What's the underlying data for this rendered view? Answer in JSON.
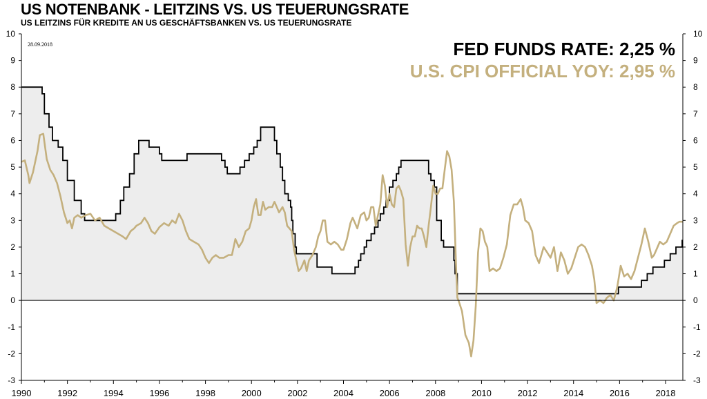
{
  "header": {
    "title": "US NOTENBANK - LEITZINS VS. US TEUERUNGSRATE",
    "subtitle": "US LEITZINS FÜR KREDITE AN US GESCHÄFTSBANKEN  VS.  US TEUERUNGSRATE"
  },
  "chart_data": {
    "type": "line",
    "title": "US NOTENBANK - LEITZINS VS. US TEUERUNGSRATE",
    "subtitle": "US LEITZINS FÜR KREDITE AN US GESCHÄFTSBANKEN  VS.  US TEUERUNGSRATE",
    "date_stamp": "28.09.2018",
    "xlim": [
      1990,
      2018.75
    ],
    "ylim": [
      -3,
      10
    ],
    "y_ticks": [
      "10",
      "9",
      "8",
      "7",
      "6",
      "5",
      "4",
      "3",
      "2",
      "1",
      "0",
      "-1",
      "-2",
      "-3"
    ],
    "x_ticks": [
      "1990",
      "1992",
      "1994",
      "1996",
      "1998",
      "2000",
      "2002",
      "2004",
      "2006",
      "2008",
      "2010",
      "2012",
      "2014",
      "2016",
      "2018"
    ],
    "legend": [
      {
        "label": "FED FUNDS RATE: 2,25 %",
        "color": "#000000"
      },
      {
        "label": "U.S. CPI OFFICIAL YOY: 2,95 %",
        "color": "#c4b07e"
      }
    ],
    "series": [
      {
        "name": "Fed Funds Rate",
        "style": "step-filled",
        "color": "#000000",
        "fill": "#ededed",
        "points": [
          [
            1990,
            8.0
          ],
          [
            1990.8,
            8.0
          ],
          [
            1990.9,
            7.75
          ],
          [
            1991.0,
            7.0
          ],
          [
            1991.2,
            6.5
          ],
          [
            1991.35,
            6.0
          ],
          [
            1991.6,
            5.75
          ],
          [
            1991.8,
            5.25
          ],
          [
            1992.0,
            4.5
          ],
          [
            1992.3,
            3.75
          ],
          [
            1992.6,
            3.25
          ],
          [
            1992.75,
            3.0
          ],
          [
            1994.1,
            3.25
          ],
          [
            1994.3,
            3.75
          ],
          [
            1994.45,
            4.25
          ],
          [
            1994.7,
            4.75
          ],
          [
            1994.9,
            5.5
          ],
          [
            1995.1,
            6.0
          ],
          [
            1995.55,
            5.75
          ],
          [
            1996.0,
            5.5
          ],
          [
            1996.1,
            5.25
          ],
          [
            1997.2,
            5.5
          ],
          [
            1998.7,
            5.25
          ],
          [
            1998.85,
            5.0
          ],
          [
            1998.95,
            4.75
          ],
          [
            1999.5,
            5.0
          ],
          [
            1999.7,
            5.25
          ],
          [
            1999.9,
            5.5
          ],
          [
            2000.1,
            5.75
          ],
          [
            2000.25,
            6.0
          ],
          [
            2000.4,
            6.5
          ],
          [
            2001.0,
            6.0
          ],
          [
            2001.1,
            5.5
          ],
          [
            2001.25,
            5.0
          ],
          [
            2001.35,
            4.5
          ],
          [
            2001.45,
            4.0
          ],
          [
            2001.6,
            3.75
          ],
          [
            2001.7,
            3.5
          ],
          [
            2001.75,
            3.0
          ],
          [
            2001.8,
            2.5
          ],
          [
            2001.9,
            2.0
          ],
          [
            2001.95,
            1.75
          ],
          [
            2002.85,
            1.25
          ],
          [
            2003.5,
            1.0
          ],
          [
            2004.5,
            1.25
          ],
          [
            2004.65,
            1.5
          ],
          [
            2004.75,
            1.75
          ],
          [
            2004.9,
            2.0
          ],
          [
            2005.0,
            2.25
          ],
          [
            2005.2,
            2.5
          ],
          [
            2005.35,
            2.75
          ],
          [
            2005.5,
            3.0
          ],
          [
            2005.6,
            3.25
          ],
          [
            2005.75,
            3.5
          ],
          [
            2005.85,
            3.75
          ],
          [
            2006.0,
            4.25
          ],
          [
            2006.15,
            4.5
          ],
          [
            2006.3,
            4.75
          ],
          [
            2006.4,
            5.0
          ],
          [
            2006.5,
            5.25
          ],
          [
            2007.7,
            4.75
          ],
          [
            2007.8,
            4.5
          ],
          [
            2007.95,
            4.25
          ],
          [
            2008.05,
            3.0
          ],
          [
            2008.25,
            2.25
          ],
          [
            2008.35,
            2.0
          ],
          [
            2008.8,
            1.5
          ],
          [
            2008.85,
            1.0
          ],
          [
            2008.95,
            0.25
          ],
          [
            2015.95,
            0.5
          ],
          [
            2016.95,
            0.75
          ],
          [
            2017.2,
            1.0
          ],
          [
            2017.45,
            1.25
          ],
          [
            2017.95,
            1.5
          ],
          [
            2018.2,
            1.75
          ],
          [
            2018.45,
            2.0
          ],
          [
            2018.72,
            2.25
          ],
          [
            2018.75,
            2.25
          ]
        ]
      },
      {
        "name": "U.S. CPI Official YoY",
        "style": "line",
        "color": "#c4b07e",
        "points": [
          [
            1990,
            5.2
          ],
          [
            1990.15,
            5.25
          ],
          [
            1990.3,
            4.7
          ],
          [
            1990.35,
            4.4
          ],
          [
            1990.5,
            4.8
          ],
          [
            1990.7,
            5.6
          ],
          [
            1990.8,
            6.2
          ],
          [
            1990.95,
            6.25
          ],
          [
            1991.1,
            5.3
          ],
          [
            1991.25,
            4.9
          ],
          [
            1991.4,
            4.7
          ],
          [
            1991.55,
            4.4
          ],
          [
            1991.7,
            3.9
          ],
          [
            1991.85,
            3.3
          ],
          [
            1992.0,
            2.9
          ],
          [
            1992.1,
            3.0
          ],
          [
            1992.2,
            2.7
          ],
          [
            1992.3,
            3.1
          ],
          [
            1992.45,
            3.2
          ],
          [
            1992.6,
            3.1
          ],
          [
            1992.8,
            3.2
          ],
          [
            1993.0,
            3.25
          ],
          [
            1993.2,
            3.0
          ],
          [
            1993.4,
            3.1
          ],
          [
            1993.6,
            2.8
          ],
          [
            1993.8,
            2.7
          ],
          [
            1994.0,
            2.6
          ],
          [
            1994.2,
            2.5
          ],
          [
            1994.4,
            2.4
          ],
          [
            1994.55,
            2.3
          ],
          [
            1994.75,
            2.6
          ],
          [
            1994.9,
            2.7
          ],
          [
            1995.0,
            2.8
          ],
          [
            1995.2,
            2.9
          ],
          [
            1995.35,
            3.1
          ],
          [
            1995.5,
            2.9
          ],
          [
            1995.65,
            2.6
          ],
          [
            1995.8,
            2.5
          ],
          [
            1996.0,
            2.75
          ],
          [
            1996.2,
            2.9
          ],
          [
            1996.4,
            2.8
          ],
          [
            1996.55,
            3.0
          ],
          [
            1996.7,
            2.9
          ],
          [
            1996.85,
            3.25
          ],
          [
            1997.0,
            3.0
          ],
          [
            1997.15,
            2.6
          ],
          [
            1997.3,
            2.3
          ],
          [
            1997.5,
            2.2
          ],
          [
            1997.7,
            2.1
          ],
          [
            1997.85,
            1.9
          ],
          [
            1998.0,
            1.6
          ],
          [
            1998.15,
            1.4
          ],
          [
            1998.3,
            1.6
          ],
          [
            1998.45,
            1.7
          ],
          [
            1998.6,
            1.6
          ],
          [
            1998.8,
            1.6
          ],
          [
            1999.0,
            1.7
          ],
          [
            1999.15,
            1.7
          ],
          [
            1999.3,
            2.3
          ],
          [
            1999.45,
            2.0
          ],
          [
            1999.6,
            2.2
          ],
          [
            1999.75,
            2.6
          ],
          [
            1999.9,
            2.7
          ],
          [
            2000.0,
            3.0
          ],
          [
            2000.1,
            3.5
          ],
          [
            2000.2,
            3.8
          ],
          [
            2000.3,
            3.2
          ],
          [
            2000.4,
            3.2
          ],
          [
            2000.5,
            3.7
          ],
          [
            2000.6,
            3.4
          ],
          [
            2000.75,
            3.5
          ],
          [
            2000.9,
            3.5
          ],
          [
            2001.0,
            3.7
          ],
          [
            2001.1,
            3.5
          ],
          [
            2001.2,
            3.3
          ],
          [
            2001.35,
            3.5
          ],
          [
            2001.45,
            3.3
          ],
          [
            2001.55,
            2.8
          ],
          [
            2001.65,
            2.7
          ],
          [
            2001.75,
            2.6
          ],
          [
            2001.85,
            1.9
          ],
          [
            2001.95,
            1.5
          ],
          [
            2002.05,
            1.1
          ],
          [
            2002.15,
            1.2
          ],
          [
            2002.3,
            1.5
          ],
          [
            2002.4,
            1.1
          ],
          [
            2002.5,
            1.5
          ],
          [
            2002.65,
            1.7
          ],
          [
            2002.8,
            2.0
          ],
          [
            2002.9,
            2.4
          ],
          [
            2003.0,
            2.6
          ],
          [
            2003.1,
            3.0
          ],
          [
            2003.2,
            3.0
          ],
          [
            2003.3,
            2.2
          ],
          [
            2003.45,
            2.1
          ],
          [
            2003.6,
            2.2
          ],
          [
            2003.75,
            2.1
          ],
          [
            2003.9,
            1.9
          ],
          [
            2004.0,
            1.9
          ],
          [
            2004.15,
            2.3
          ],
          [
            2004.3,
            2.9
          ],
          [
            2004.4,
            3.1
          ],
          [
            2004.5,
            2.9
          ],
          [
            2004.6,
            2.7
          ],
          [
            2004.75,
            3.2
          ],
          [
            2004.9,
            3.3
          ],
          [
            2005.0,
            3.0
          ],
          [
            2005.1,
            3.1
          ],
          [
            2005.2,
            3.5
          ],
          [
            2005.3,
            3.5
          ],
          [
            2005.4,
            2.8
          ],
          [
            2005.5,
            3.2
          ],
          [
            2005.6,
            3.6
          ],
          [
            2005.7,
            4.7
          ],
          [
            2005.8,
            4.3
          ],
          [
            2005.9,
            3.5
          ],
          [
            2006.0,
            4.0
          ],
          [
            2006.1,
            3.6
          ],
          [
            2006.2,
            3.5
          ],
          [
            2006.3,
            4.2
          ],
          [
            2006.4,
            4.3
          ],
          [
            2006.5,
            4.1
          ],
          [
            2006.6,
            3.8
          ],
          [
            2006.7,
            2.1
          ],
          [
            2006.8,
            1.3
          ],
          [
            2006.9,
            2.0
          ],
          [
            2007.0,
            2.4
          ],
          [
            2007.1,
            2.4
          ],
          [
            2007.2,
            2.8
          ],
          [
            2007.3,
            2.7
          ],
          [
            2007.4,
            2.7
          ],
          [
            2007.5,
            2.4
          ],
          [
            2007.6,
            2.0
          ],
          [
            2007.7,
            2.8
          ],
          [
            2007.8,
            3.5
          ],
          [
            2007.9,
            4.3
          ],
          [
            2008.0,
            4.0
          ],
          [
            2008.1,
            4.0
          ],
          [
            2008.2,
            4.2
          ],
          [
            2008.3,
            4.2
          ],
          [
            2008.4,
            4.9
          ],
          [
            2008.5,
            5.6
          ],
          [
            2008.6,
            5.4
          ],
          [
            2008.7,
            4.9
          ],
          [
            2008.8,
            3.7
          ],
          [
            2008.9,
            1.1
          ],
          [
            2008.95,
            0.1
          ],
          [
            2009.0,
            0.0
          ],
          [
            2009.15,
            -0.4
          ],
          [
            2009.3,
            -1.3
          ],
          [
            2009.45,
            -1.6
          ],
          [
            2009.55,
            -2.1
          ],
          [
            2009.65,
            -1.5
          ],
          [
            2009.75,
            -0.2
          ],
          [
            2009.85,
            1.8
          ],
          [
            2009.95,
            2.7
          ],
          [
            2010.05,
            2.6
          ],
          [
            2010.15,
            2.2
          ],
          [
            2010.25,
            2.0
          ],
          [
            2010.35,
            1.1
          ],
          [
            2010.5,
            1.2
          ],
          [
            2010.65,
            1.1
          ],
          [
            2010.8,
            1.2
          ],
          [
            2010.95,
            1.6
          ],
          [
            2011.1,
            2.1
          ],
          [
            2011.25,
            3.2
          ],
          [
            2011.4,
            3.6
          ],
          [
            2011.55,
            3.6
          ],
          [
            2011.7,
            3.8
          ],
          [
            2011.8,
            3.5
          ],
          [
            2011.9,
            3.0
          ],
          [
            2012.05,
            2.9
          ],
          [
            2012.2,
            2.6
          ],
          [
            2012.35,
            1.7
          ],
          [
            2012.5,
            1.4
          ],
          [
            2012.6,
            1.7
          ],
          [
            2012.7,
            2.0
          ],
          [
            2012.85,
            1.8
          ],
          [
            2013.0,
            1.6
          ],
          [
            2013.15,
            2.0
          ],
          [
            2013.3,
            1.1
          ],
          [
            2013.45,
            1.8
          ],
          [
            2013.6,
            1.5
          ],
          [
            2013.75,
            1.0
          ],
          [
            2013.9,
            1.2
          ],
          [
            2014.05,
            1.6
          ],
          [
            2014.2,
            2.0
          ],
          [
            2014.35,
            2.1
          ],
          [
            2014.5,
            2.0
          ],
          [
            2014.65,
            1.7
          ],
          [
            2014.8,
            1.3
          ],
          [
            2014.9,
            0.8
          ],
          [
            2015.0,
            -0.1
          ],
          [
            2015.15,
            0.0
          ],
          [
            2015.3,
            -0.1
          ],
          [
            2015.45,
            0.1
          ],
          [
            2015.6,
            0.2
          ],
          [
            2015.75,
            0.0
          ],
          [
            2015.9,
            0.5
          ],
          [
            2016.05,
            1.3
          ],
          [
            2016.2,
            0.9
          ],
          [
            2016.35,
            1.0
          ],
          [
            2016.5,
            0.8
          ],
          [
            2016.65,
            1.1
          ],
          [
            2016.8,
            1.6
          ],
          [
            2016.95,
            2.1
          ],
          [
            2017.1,
            2.7
          ],
          [
            2017.25,
            2.2
          ],
          [
            2017.4,
            1.6
          ],
          [
            2017.5,
            1.7
          ],
          [
            2017.6,
            1.9
          ],
          [
            2017.75,
            2.2
          ],
          [
            2017.9,
            2.1
          ],
          [
            2018.05,
            2.2
          ],
          [
            2018.2,
            2.5
          ],
          [
            2018.35,
            2.8
          ],
          [
            2018.5,
            2.9
          ],
          [
            2018.6,
            2.95
          ],
          [
            2018.75,
            2.95
          ]
        ]
      }
    ]
  }
}
